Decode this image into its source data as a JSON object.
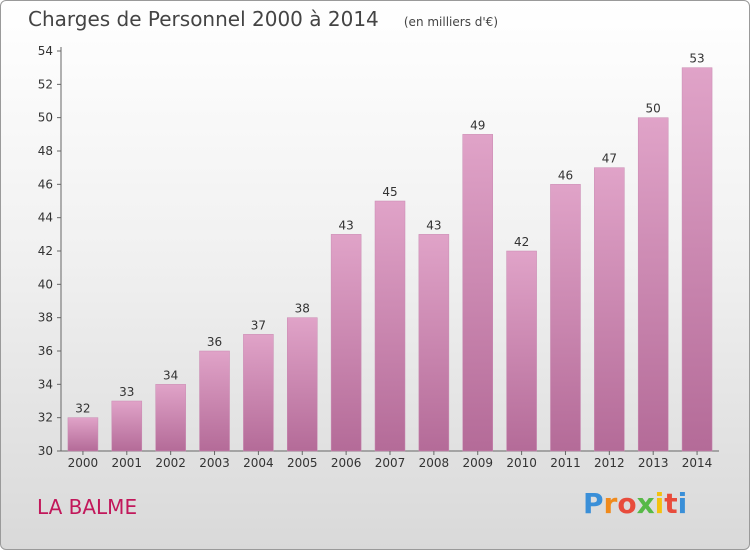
{
  "chart_data": {
    "type": "bar",
    "title": "Charges de Personnel 2000 à 2014",
    "subtitle": "(en milliers d'€)",
    "categories": [
      "2000",
      "2001",
      "2002",
      "2003",
      "2004",
      "2005",
      "2006",
      "2007",
      "2008",
      "2009",
      "2010",
      "2011",
      "2012",
      "2013",
      "2014"
    ],
    "values": [
      32,
      33,
      34,
      36,
      37,
      38,
      43,
      45,
      43,
      49,
      42,
      46,
      47,
      50,
      53
    ],
    "ylim": [
      30,
      54
    ],
    "yticks": [
      30,
      32,
      34,
      36,
      38,
      40,
      42,
      44,
      46,
      48,
      50,
      52,
      54
    ],
    "grid": false,
    "bar_color_top": "#e0a3c8",
    "bar_color_bottom": "#b46b98"
  },
  "place_label": "LA BALME",
  "logo": {
    "letters": [
      "P",
      "r",
      "o",
      "x",
      "i",
      "t",
      "i"
    ],
    "colors": [
      "#3a8fd8",
      "#f08a1c",
      "#e84c3c",
      "#57b947",
      "#f4c10f",
      "#e84c3c",
      "#3a8fd8"
    ]
  }
}
